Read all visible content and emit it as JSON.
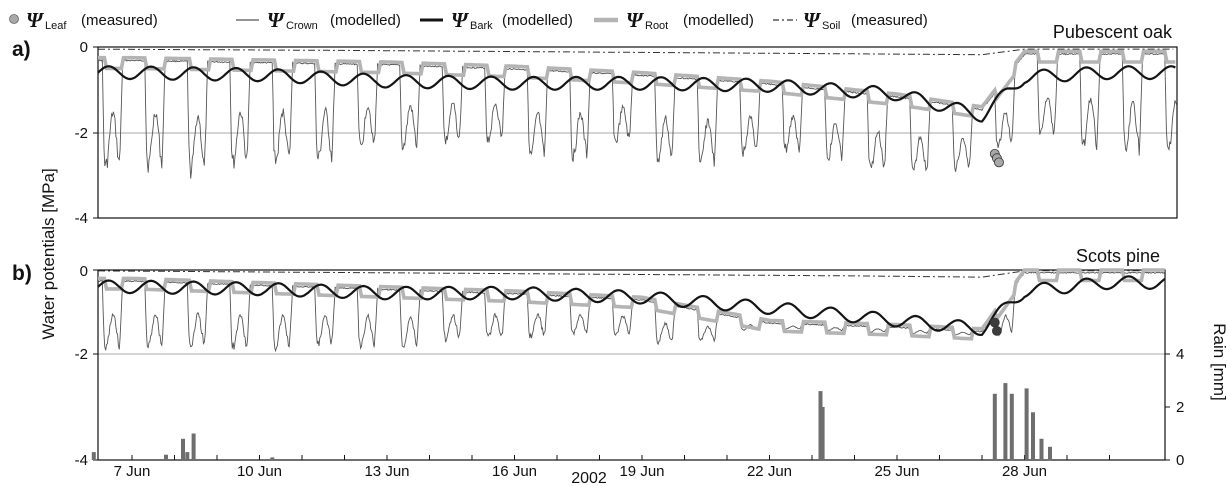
{
  "chart_data": [
    {
      "type": "line",
      "panel_label": "a)",
      "title": "Pubescent oak",
      "ylabel": "Water potentials [MPa]",
      "ylim": [
        -4,
        0
      ],
      "yticks": [
        "0",
        "-2",
        "-4"
      ],
      "x_range": [
        "2002-06-06",
        "2002-06-30"
      ],
      "gridlines": [
        -2
      ],
      "series": [
        {
          "name": "ΨLeaf (measured)",
          "style": "grey filled circles",
          "x": [
            "2002-06-27",
            "2002-06-27",
            "2002-06-27"
          ],
          "y": [
            -2.5,
            -2.6,
            -2.7
          ]
        },
        {
          "name": "ΨCrown (modelled)",
          "style": "thin dark line",
          "x": [
            "2002-06-07",
            "2002-06-08",
            "2002-06-09",
            "2002-06-10",
            "2002-06-11",
            "2002-06-12",
            "2002-06-13",
            "2002-06-14",
            "2002-06-15",
            "2002-06-16",
            "2002-06-17",
            "2002-06-18",
            "2002-06-19",
            "2002-06-20",
            "2002-06-21",
            "2002-06-22",
            "2002-06-23",
            "2002-06-24",
            "2002-06-25",
            "2002-06-26",
            "2002-06-27",
            "2002-06-28",
            "2002-06-29",
            "2002-06-30"
          ],
          "y": [
            -3.0,
            -2.9,
            -3.3,
            -2.5,
            -3.2,
            -2.4,
            -2.6,
            -2.4,
            -2.3,
            -2.3,
            -3.2,
            -2.2,
            -2.5,
            -3.1,
            -2.6,
            -2.6,
            -2.4,
            -3.0,
            -3.0,
            -3.2,
            -2.7,
            -2.2,
            -2.3,
            -2.6
          ]
        },
        {
          "name": "ΨBark (modelled)",
          "style": "thick black line",
          "x": [
            "2002-06-07",
            "2002-06-10",
            "2002-06-13",
            "2002-06-16",
            "2002-06-19",
            "2002-06-22",
            "2002-06-25",
            "2002-06-27",
            "2002-06-28",
            "2002-06-30"
          ],
          "y": [
            -0.6,
            -0.65,
            -0.8,
            -0.85,
            -0.85,
            -0.9,
            -1.1,
            -1.6,
            -0.7,
            -0.6
          ]
        },
        {
          "name": "ΨRoot (modelled)",
          "style": "thick light grey line",
          "x": [
            "2002-06-07",
            "2002-06-10",
            "2002-06-13",
            "2002-06-16",
            "2002-06-19",
            "2002-06-22",
            "2002-06-25",
            "2002-06-27",
            "2002-06-28",
            "2002-06-30"
          ],
          "y": [
            -0.25,
            -0.3,
            -0.35,
            -0.45,
            -0.6,
            -0.8,
            -1.1,
            -1.4,
            -0.1,
            -0.1
          ]
        },
        {
          "name": "ΨSoil (measured)",
          "style": "dashed line",
          "x": [
            "2002-06-06",
            "2002-06-12",
            "2002-06-18",
            "2002-06-24",
            "2002-06-27",
            "2002-06-28",
            "2002-06-30"
          ],
          "y": [
            -0.05,
            -0.08,
            -0.12,
            -0.16,
            -0.18,
            -0.05,
            -0.05
          ]
        }
      ]
    },
    {
      "type": "line",
      "panel_label": "b)",
      "title": "Scots pine",
      "ylim": [
        -4,
        0
      ],
      "yticks": [
        "0",
        "-2",
        "-4"
      ],
      "x_range": [
        "2002-06-06",
        "2002-06-30"
      ],
      "gridlines": [
        -2
      ],
      "xlabel": "2002",
      "xticks": [
        "7 Jun",
        "10 Jun",
        "13 Jun",
        "16 Jun",
        "19 Jun",
        "22 Jun",
        "25 Jun",
        "28 Jun"
      ],
      "y2label": "Rain [mm]",
      "y2lim": [
        0,
        6
      ],
      "y2ticks": [
        "0",
        "2",
        "4"
      ],
      "series": [
        {
          "name": "ΨLeaf (measured)",
          "style": "dark filled circles",
          "x": [
            "2002-06-27",
            "2002-06-27"
          ],
          "y": [
            -1.25,
            -1.45
          ]
        },
        {
          "name": "ΨCrown (modelled)",
          "style": "thin dark line",
          "x": [
            "2002-06-07",
            "2002-06-08",
            "2002-06-09",
            "2002-06-10",
            "2002-06-11",
            "2002-06-12",
            "2002-06-13",
            "2002-06-14",
            "2002-06-15",
            "2002-06-16",
            "2002-06-17",
            "2002-06-18",
            "2002-06-19",
            "2002-06-20",
            "2002-06-21",
            "2002-06-22",
            "2002-06-28",
            "2002-06-29",
            "2002-06-30"
          ],
          "y": [
            -2.0,
            -1.9,
            -2.0,
            -1.9,
            -2.0,
            -1.8,
            -2.0,
            -1.8,
            -1.7,
            -1.7,
            -1.6,
            -1.6,
            -1.6,
            -2.0,
            -1.5,
            -1.4,
            -1.6,
            -2.0,
            -1.7
          ]
        },
        {
          "name": "ΨBark (modelled)",
          "style": "thick black line",
          "x": [
            "2002-06-07",
            "2002-06-10",
            "2002-06-13",
            "2002-06-16",
            "2002-06-19",
            "2002-06-22",
            "2002-06-25",
            "2002-06-27",
            "2002-06-28",
            "2002-06-30"
          ],
          "y": [
            -0.4,
            -0.45,
            -0.55,
            -0.55,
            -0.65,
            -0.9,
            -1.2,
            -1.4,
            -0.5,
            -0.3
          ]
        },
        {
          "name": "ΨRoot (modelled)",
          "style": "thick light grey line",
          "x": [
            "2002-06-07",
            "2002-06-10",
            "2002-06-13",
            "2002-06-16",
            "2002-06-19",
            "2002-06-22",
            "2002-06-25",
            "2002-06-27",
            "2002-06-28",
            "2002-06-30"
          ],
          "y": [
            -0.2,
            -0.3,
            -0.4,
            -0.5,
            -0.65,
            -1.2,
            -1.3,
            -1.4,
            0,
            0
          ]
        },
        {
          "name": "ΨSoil (measured)",
          "style": "dashed line",
          "x": [
            "2002-06-06",
            "2002-06-12",
            "2002-06-18",
            "2002-06-24",
            "2002-06-27",
            "2002-06-28",
            "2002-06-30"
          ],
          "y": [
            -0.02,
            -0.06,
            -0.1,
            -0.14,
            -0.17,
            -0.02,
            -0.02
          ]
        },
        {
          "name": "Rain",
          "style": "grey bars on right axis",
          "x": [
            "2002-06-06",
            "2002-06-07",
            "2002-06-08",
            "2002-06-08",
            "2002-06-08",
            "2002-06-10",
            "2002-06-23",
            "2002-06-23",
            "2002-06-27",
            "2002-06-27",
            "2002-06-27",
            "2002-06-28",
            "2002-06-28",
            "2002-06-28",
            "2002-06-28"
          ],
          "y": [
            0.3,
            0.2,
            0.8,
            1.0,
            0.3,
            0.1,
            2.6,
            2.0,
            2.5,
            2.9,
            2.5,
            2.7,
            1.8,
            0.8,
            0.5
          ]
        }
      ]
    }
  ],
  "legend": {
    "leaf": {
      "symbol": "Ψ",
      "sub": "Leaf",
      "label": "(measured)"
    },
    "crown": {
      "symbol": "Ψ",
      "sub": "Crown",
      "label": "(modelled)"
    },
    "bark": {
      "symbol": "Ψ",
      "sub": "Bark",
      "label": "(modelled)"
    },
    "root": {
      "symbol": "Ψ",
      "sub": "Root",
      "label": "(modelled)"
    },
    "soil": {
      "symbol": "Ψ",
      "sub": "Soil",
      "label": "(measured)"
    }
  },
  "colors": {
    "crown": "#555555",
    "bark": "#141414",
    "root": "#b4b4b4",
    "soil": "#333333",
    "leaf_a": "#a8a8a8",
    "leaf_b": "#3c3c3c",
    "rain": "#6e6e6e",
    "grid": "#aaaaaa"
  }
}
